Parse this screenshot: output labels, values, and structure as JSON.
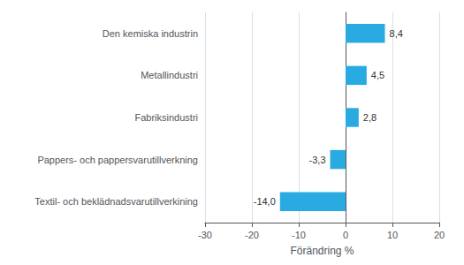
{
  "chart_data": {
    "type": "bar",
    "orientation": "horizontal",
    "categories": [
      "Textil- och beklädnadsvarutillverkining",
      "Pappers- och pappersvarutillverkning",
      "Fabriksindustri",
      "Metallindustri",
      "Den kemiska industrin"
    ],
    "values": [
      -14.0,
      -3.3,
      2.8,
      4.5,
      8.4
    ],
    "value_labels": [
      "-14,0",
      "-3,3",
      "2,8",
      "4,5",
      "8,4"
    ],
    "data_labels": true,
    "color": "#29ABE2",
    "xlabel": "Förändring %",
    "xlim": [
      -30,
      20
    ],
    "xticks": [
      -30,
      -20,
      -10,
      0,
      10,
      20
    ],
    "grid": true
  }
}
